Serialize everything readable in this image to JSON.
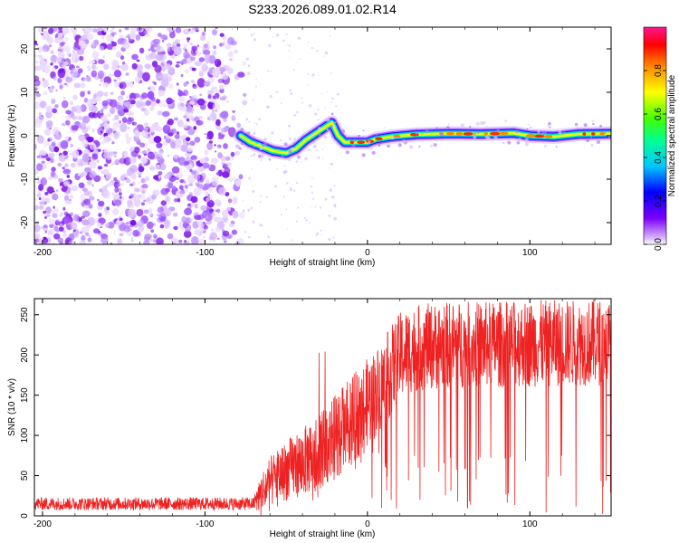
{
  "page": {
    "title": "S233.2026.089.01.02.R14"
  },
  "chart_data": [
    {
      "type": "heatmap",
      "name": "spectrogram",
      "xlabel": "Height of straight line (km)",
      "ylabel": "Frequency (Hz)",
      "xlim": [
        -205,
        150
      ],
      "ylim": [
        -25,
        25
      ],
      "x_ticks": [
        -200,
        -100,
        0,
        100
      ],
      "y_ticks": [
        -20,
        -10,
        0,
        10,
        20
      ],
      "colorbar": {
        "label": "Normalized spectral amplitude",
        "range": [
          0,
          1
        ],
        "ticks": [
          0.0,
          0.2,
          0.4,
          0.6,
          0.8
        ]
      },
      "noise_region": [
        -205,
        -75
      ],
      "ridge_points": [
        [
          -78,
          0
        ],
        [
          -72,
          -1.5
        ],
        [
          -65,
          -2.5
        ],
        [
          -58,
          -3.5
        ],
        [
          -50,
          -4
        ],
        [
          -44,
          -3
        ],
        [
          -38,
          -1
        ],
        [
          -32,
          0.5
        ],
        [
          -26,
          2
        ],
        [
          -22,
          3
        ],
        [
          -18,
          0
        ],
        [
          -14,
          -1.5
        ],
        [
          -8,
          -1.5
        ],
        [
          0,
          -1.5
        ],
        [
          5,
          -0.8
        ],
        [
          15,
          -0.2
        ],
        [
          30,
          0.3
        ],
        [
          50,
          0.5
        ],
        [
          70,
          0.4
        ],
        [
          90,
          0.6
        ],
        [
          100,
          0
        ],
        [
          115,
          -0.2
        ],
        [
          130,
          0.4
        ],
        [
          150,
          0.5
        ]
      ]
    },
    {
      "type": "line",
      "name": "snr",
      "xlabel": "Height of straight line (km)",
      "ylabel": "SNR (10 * v/v)",
      "xlim": [
        -205,
        150
      ],
      "ylim": [
        0,
        270
      ],
      "x_ticks": [
        -200,
        -100,
        0,
        100
      ],
      "y_ticks": [
        0,
        50,
        100,
        150,
        200,
        250
      ],
      "color": "#ee2222",
      "envelope": {
        "x": [
          -205,
          -70,
          -66,
          -62,
          -55,
          -45,
          -35,
          -25,
          -15,
          -5,
          5,
          10,
          15,
          20,
          25,
          30,
          35,
          50,
          100,
          150
        ],
        "mean": [
          15,
          15,
          28,
          38,
          50,
          62,
          72,
          88,
          108,
          128,
          152,
          165,
          182,
          198,
          205,
          208,
          210,
          212,
          214,
          216
        ],
        "amp": [
          8,
          8,
          24,
          30,
          35,
          40,
          45,
          50,
          54,
          56,
          56,
          56,
          56,
          55,
          54,
          54,
          54,
          54,
          54,
          54
        ]
      }
    }
  ]
}
